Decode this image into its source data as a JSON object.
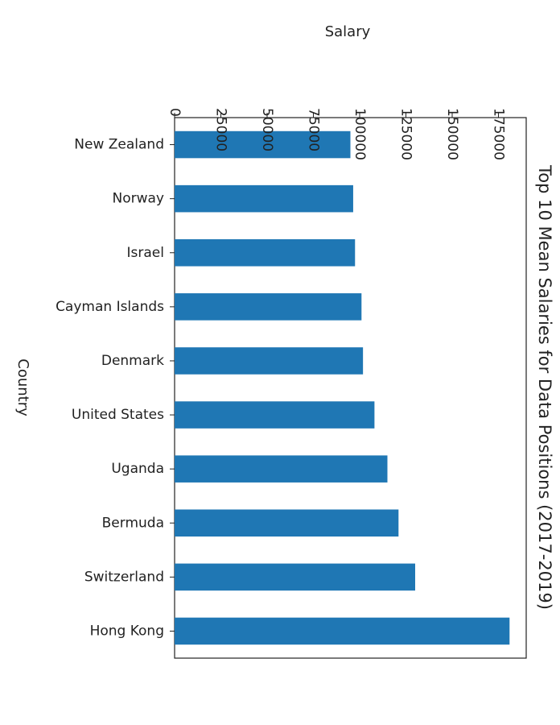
{
  "chart_data": {
    "type": "bar",
    "orientation": "horizontal",
    "title": "Top 10 Mean Salaries for Data Positions (2017-2019)",
    "xlabel": "Salary",
    "ylabel": "Country",
    "categories": [
      "New Zealand",
      "Norway",
      "Israel",
      "Cayman Islands",
      "Denmark",
      "United States",
      "Uganda",
      "Bermuda",
      "Switzerland",
      "Hong Kong"
    ],
    "values": [
      95000,
      96500,
      97500,
      101000,
      101800,
      108000,
      115000,
      121000,
      130000,
      181000
    ],
    "xticks": [
      "0",
      "25000",
      "50000",
      "75000",
      "100000",
      "125000",
      "150000",
      "175000"
    ],
    "xlim": [
      0,
      190000
    ],
    "grid": false,
    "bar_color": "#1f77b4"
  }
}
